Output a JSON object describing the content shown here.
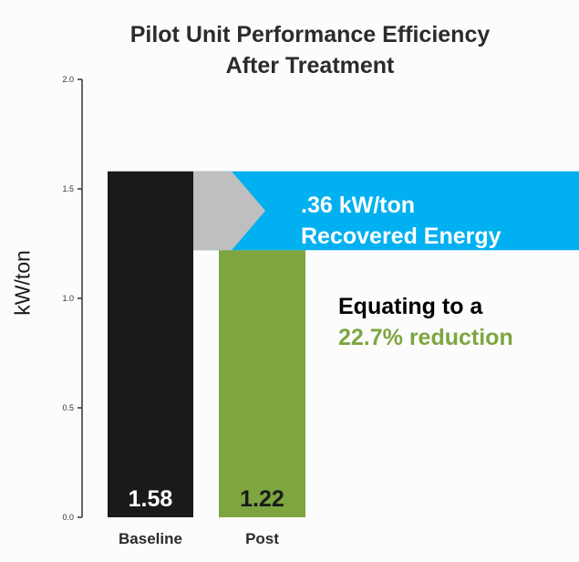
{
  "chart_data": {
    "type": "bar",
    "title": [
      "Pilot Unit Performance Efficiency",
      "After Treatment"
    ],
    "xlabel": "",
    "ylabel": "kW/ton",
    "categories": [
      "Baseline",
      "Post"
    ],
    "values": [
      1.58,
      1.22
    ],
    "value_labels": [
      "1.58",
      "1.22"
    ],
    "bar_colors": [
      "#1b1a1b",
      "#7ea53f"
    ],
    "ylim": [
      0,
      2.0
    ],
    "yticks": [
      "0.0",
      "0.5",
      "1.0",
      "1.5",
      "2.0"
    ],
    "grid": false,
    "annotations": {
      "callout": {
        "lines": [
          ".36 kW/ton",
          "Recovered Energy"
        ],
        "color": "#00b0f0",
        "arrow_color": "#bfbfbf",
        "span": [
          1.22,
          1.58
        ]
      },
      "note": {
        "line1": "Equating to a",
        "line1_color": "#000000",
        "line2": "22.7% reduction",
        "line2_color": "#7ea53f"
      }
    }
  }
}
